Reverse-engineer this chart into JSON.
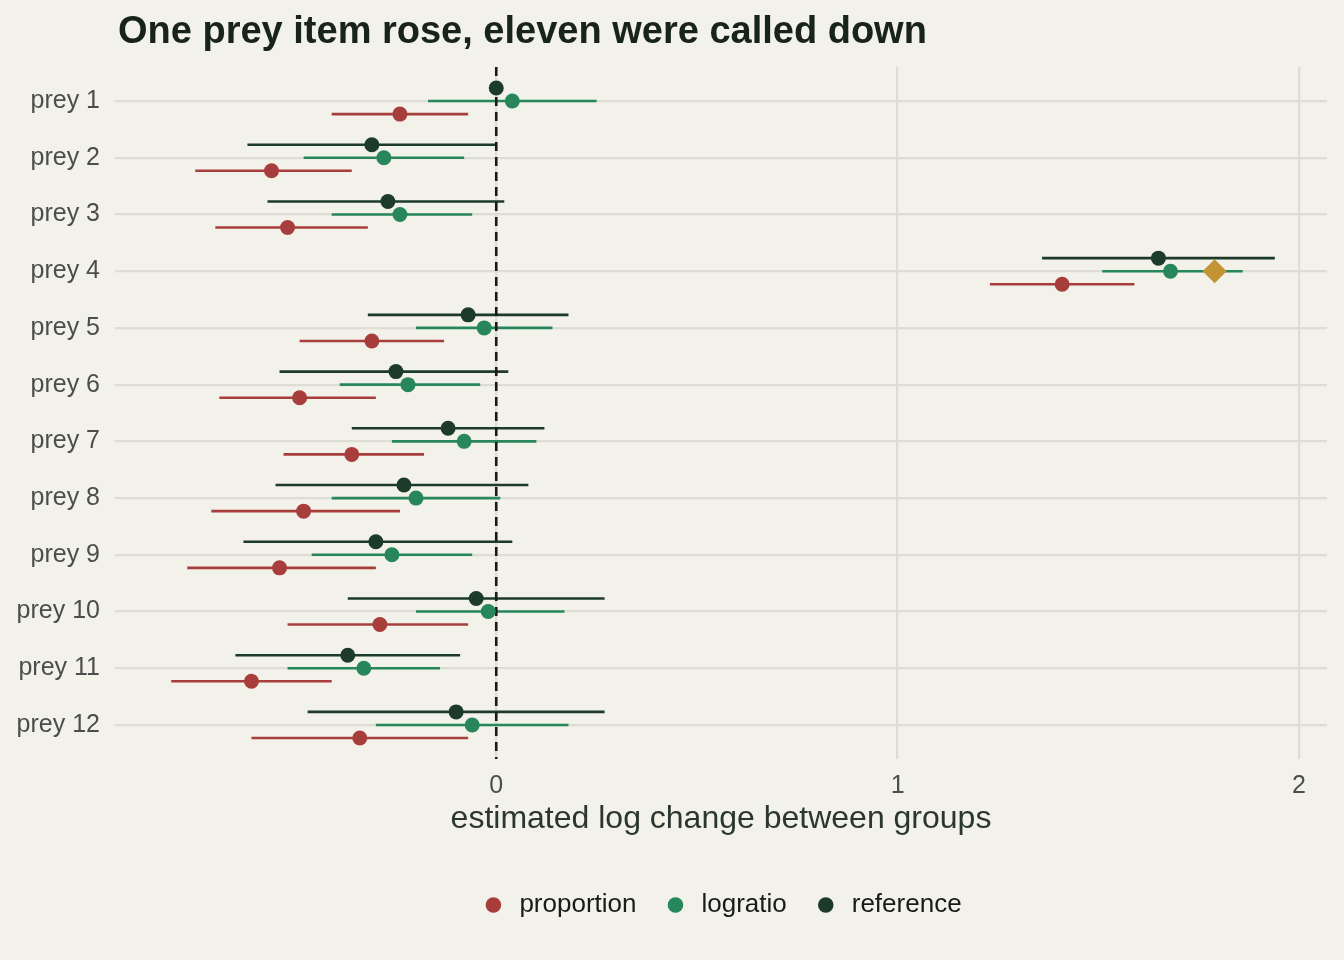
{
  "chart_data": {
    "type": "scatter",
    "orientation": "horizontal",
    "title": "One prey item rose, eleven were called down",
    "xlabel": "estimated log change between groups",
    "categories": [
      "prey 1",
      "prey 2",
      "prey 3",
      "prey 4",
      "prey 5",
      "prey 6",
      "prey 7",
      "prey 8",
      "prey 9",
      "prey 10",
      "prey 11",
      "prey 12"
    ],
    "xlim": [
      -0.95,
      2.07
    ],
    "xticks": [
      0,
      1,
      2
    ],
    "grid": true,
    "legend": "bottom",
    "marker": "circle",
    "ref_lines": [
      {
        "axis": "x",
        "value": 0,
        "color": "#1a1a1a",
        "line_style": "dashed"
      }
    ],
    "series": [
      {
        "name": "proportion",
        "color": "#a83e3c",
        "values": [
          -0.24,
          -0.56,
          -0.52,
          1.41,
          -0.31,
          -0.49,
          -0.36,
          -0.48,
          -0.54,
          -0.29,
          -0.61,
          -0.34
        ],
        "errors": [
          [
            -0.41,
            -0.07
          ],
          [
            -0.75,
            -0.36
          ],
          [
            -0.7,
            -0.32
          ],
          [
            1.23,
            1.59
          ],
          [
            -0.49,
            -0.13
          ],
          [
            -0.69,
            -0.3
          ],
          [
            -0.53,
            -0.18
          ],
          [
            -0.71,
            -0.24
          ],
          [
            -0.77,
            -0.3
          ],
          [
            -0.52,
            -0.07
          ],
          [
            -0.81,
            -0.41
          ],
          [
            -0.61,
            -0.07
          ]
        ]
      },
      {
        "name": "logratio",
        "color": "#27875a",
        "values": [
          0.04,
          -0.28,
          -0.24,
          1.68,
          -0.03,
          -0.22,
          -0.08,
          -0.2,
          -0.26,
          -0.02,
          -0.33,
          -0.06
        ],
        "errors": [
          [
            -0.17,
            0.25
          ],
          [
            -0.48,
            -0.08
          ],
          [
            -0.41,
            -0.06
          ],
          [
            1.51,
            1.86
          ],
          [
            -0.2,
            0.14
          ],
          [
            -0.39,
            -0.04
          ],
          [
            -0.26,
            0.1
          ],
          [
            -0.41,
            0.01
          ],
          [
            -0.46,
            -0.06
          ],
          [
            -0.2,
            0.17
          ],
          [
            -0.52,
            -0.14
          ],
          [
            -0.3,
            0.18
          ]
        ]
      },
      {
        "name": "reference",
        "color": "#1d3b29",
        "values": [
          0.0,
          -0.31,
          -0.27,
          1.65,
          -0.07,
          -0.25,
          -0.12,
          -0.23,
          -0.3,
          -0.05,
          -0.37,
          -0.1
        ],
        "errors": [
          null,
          [
            -0.62,
            0.0
          ],
          [
            -0.57,
            0.02
          ],
          [
            1.36,
            1.94
          ],
          [
            -0.32,
            0.18
          ],
          [
            -0.54,
            0.03
          ],
          [
            -0.36,
            0.12
          ],
          [
            -0.55,
            0.08
          ],
          [
            -0.63,
            0.04
          ],
          [
            -0.37,
            0.27
          ],
          [
            -0.65,
            -0.09
          ],
          [
            -0.47,
            0.27
          ]
        ]
      },
      {
        "color": "#c39433",
        "marker": "diamond",
        "values": [
          null,
          null,
          null,
          1.79,
          null,
          null,
          null,
          null,
          null,
          null,
          null,
          null
        ]
      }
    ]
  }
}
